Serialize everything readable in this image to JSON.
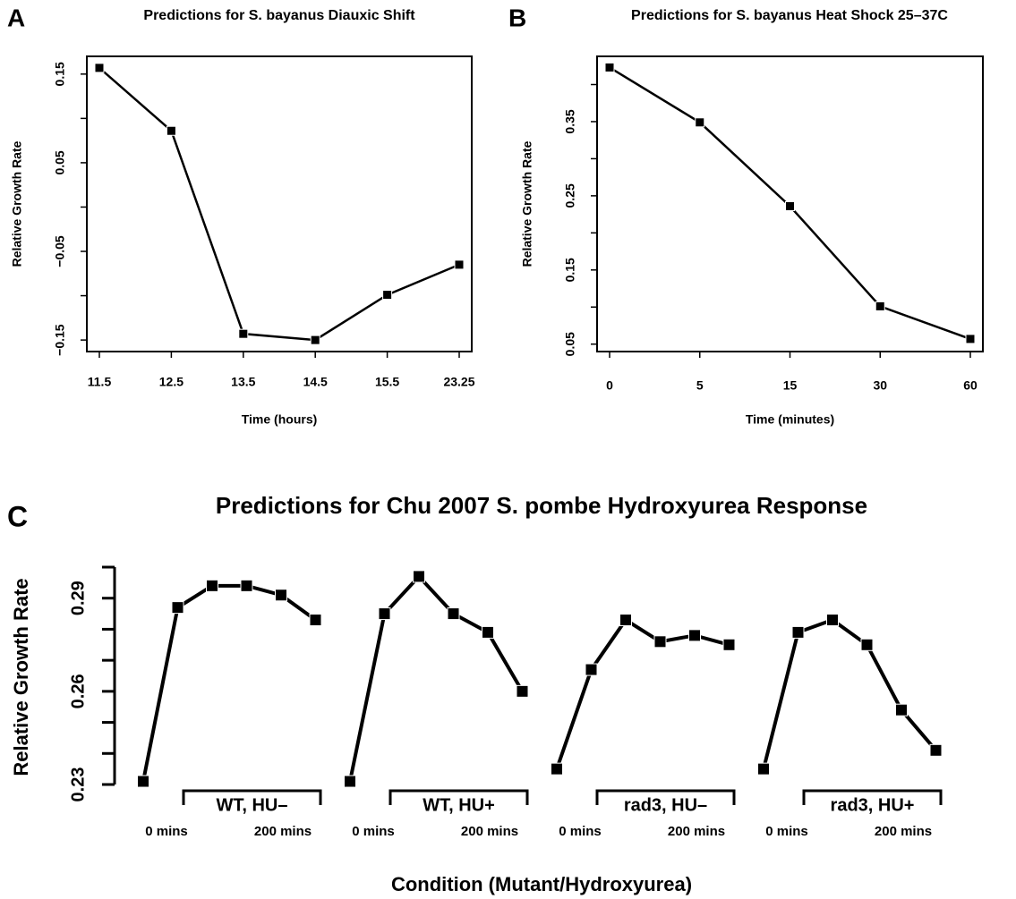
{
  "chart_data": [
    {
      "type": "line",
      "panel": "A",
      "title": "Predictions for S. bayanus Diauxic Shift",
      "xlabel": "Time (hours)",
      "ylabel": "Relative Growth Rate",
      "categories": [
        "11.5",
        "12.5",
        "13.5",
        "14.5",
        "15.5",
        "23.25"
      ],
      "values": [
        0.157,
        0.086,
        -0.143,
        -0.15,
        -0.099,
        -0.065
      ],
      "color": "#000000",
      "ylim": [
        -0.163,
        0.17
      ],
      "yticks": [
        0.15,
        0.05,
        {
          "value": -0.05,
          "label": "−0.05"
        },
        {
          "value": -0.15,
          "label": "−0.15"
        }
      ],
      "yminorticks": [
        0.1,
        0,
        -0.1
      ]
    },
    {
      "type": "line",
      "panel": "B",
      "title": "Predictions for S. bayanus Heat Shock 25–37C",
      "xlabel": "Time (minutes)",
      "ylabel": "Relative Growth Rate",
      "categories": [
        "0",
        "5",
        "15",
        "30",
        "60"
      ],
      "values": [
        0.423,
        0.349,
        0.236,
        0.101,
        0.057
      ],
      "color": "#000000",
      "ylim": [
        0.04,
        0.438
      ],
      "yticks": [
        0.35,
        0.25,
        0.15,
        0.05
      ],
      "yminorticks": [
        0.4,
        0.3,
        0.2,
        0.1
      ]
    },
    {
      "type": "grouped-line",
      "panel": "C",
      "title": "Predictions for Chu 2007 S. pombe Hydroxyurea Response",
      "xlabel": "Condition (Mutant/Hydroxyurea)",
      "ylabel": "Relative Growth Rate",
      "categories": [
        "0 mins",
        null,
        null,
        null,
        null,
        "200 mins"
      ],
      "series": [
        {
          "name": "WT, HU–",
          "color": "#000000",
          "values": [
            0.231,
            0.287,
            0.294,
            0.294,
            0.291,
            0.283
          ]
        },
        {
          "name": "WT, HU+",
          "color": "#000000",
          "values": [
            0.231,
            0.285,
            0.297,
            0.285,
            0.279,
            0.26
          ]
        },
        {
          "name": "rad3, HU–",
          "color": "#000000",
          "values": [
            0.235,
            0.267,
            0.283,
            0.276,
            0.278,
            0.275
          ]
        },
        {
          "name": "rad3, HU+",
          "color": "#000000",
          "values": [
            0.235,
            0.279,
            0.283,
            0.275,
            0.254,
            0.241
          ]
        }
      ],
      "ylim": [
        0.23,
        0.3
      ],
      "yticks": [
        0.23,
        0.26,
        0.29
      ],
      "yminorticks": [
        0.24,
        0.25,
        0.27,
        0.28,
        0.3
      ]
    }
  ]
}
